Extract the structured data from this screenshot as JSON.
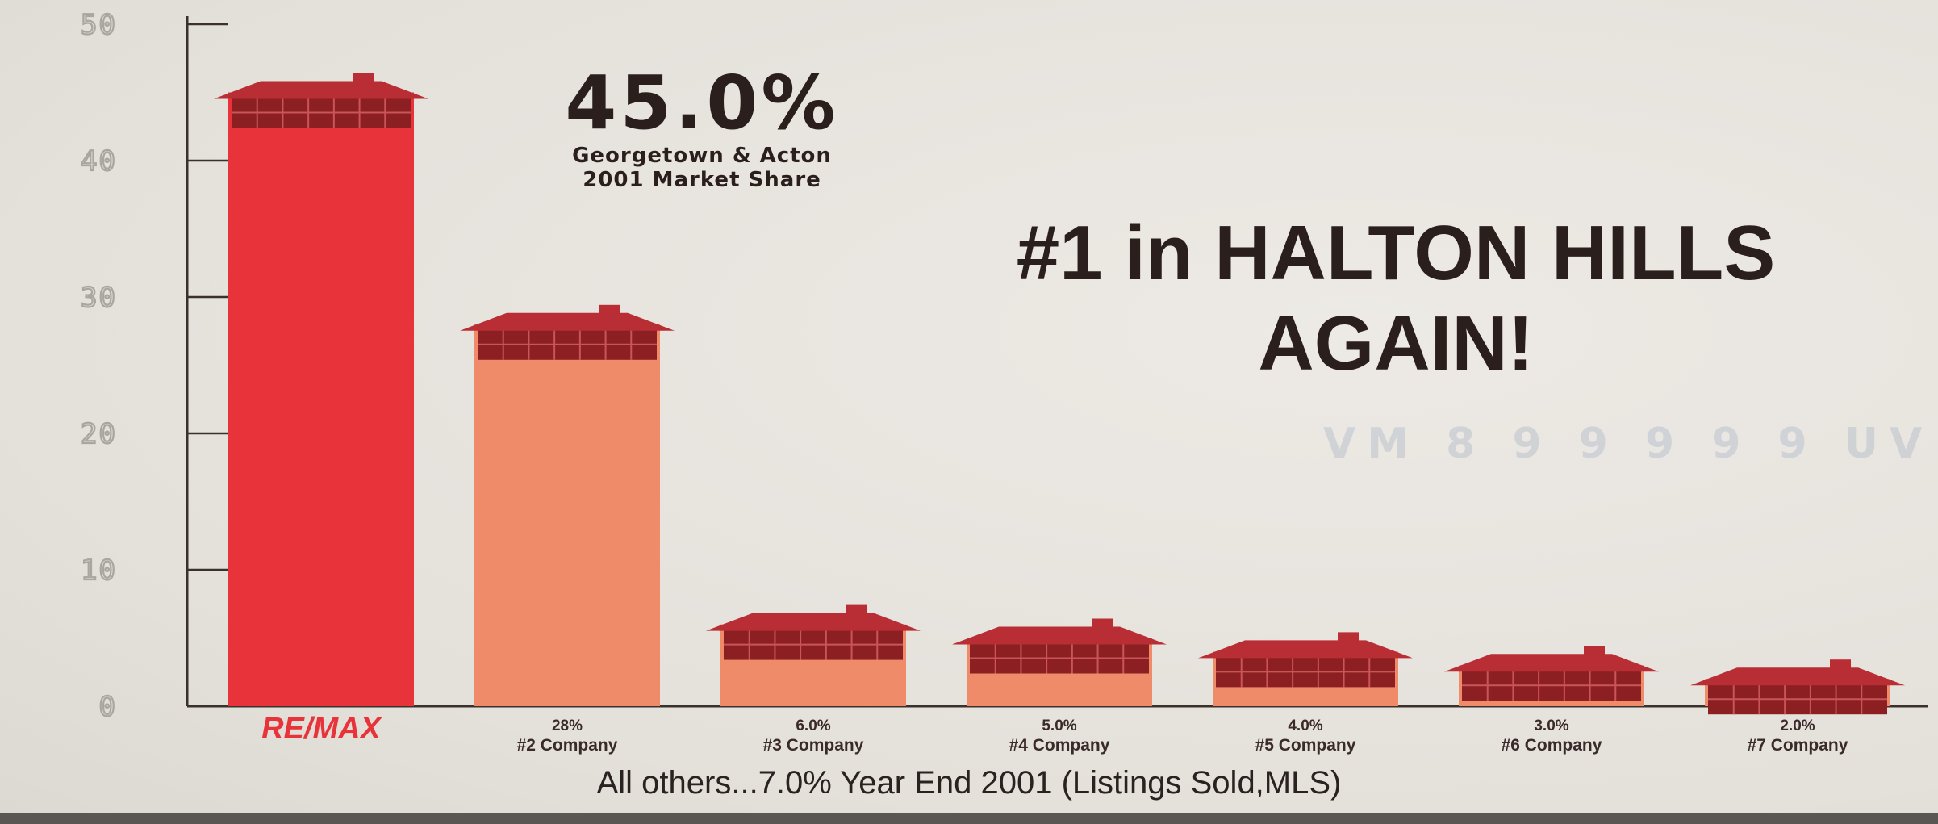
{
  "chart_data": {
    "type": "bar",
    "categories": [
      "RE/MAX",
      "#2 Company",
      "#3 Company",
      "#4 Company",
      "#5 Company",
      "#6 Company",
      "#7 Company"
    ],
    "values": [
      45.0,
      28,
      6.0,
      5.0,
      4.0,
      3.0,
      2.0
    ],
    "value_labels": [
      "45.0%",
      "28%",
      "6.0%",
      "5.0%",
      "4.0%",
      "3.0%",
      "2.0%"
    ],
    "ylim": [
      0,
      50
    ],
    "yticks": [
      0,
      10,
      20,
      30,
      40,
      50
    ],
    "ytick_labels": [
      "0",
      "10",
      "20",
      "30",
      "40",
      "50"
    ],
    "grid": false,
    "colors": {
      "leader": "#e8333a",
      "others": "#ef8b69",
      "roof": "#b82e34",
      "brick": "#8b1f22",
      "axis": "#3a302c"
    }
  },
  "callout": {
    "value": "45.0%",
    "line1": "Georgetown & Acton",
    "line2": "2001 Market Share"
  },
  "headline": {
    "line1": "#1 in HALTON HILLS",
    "line2": "AGAIN!"
  },
  "footnote": "All others...7.0% Year End 2001 (Listings Sold,MLS)",
  "brand": {
    "text": "RE/MAX",
    "color": "#e8333a"
  },
  "ghost_text": "VM 8 9 9 9 9 9 UV"
}
